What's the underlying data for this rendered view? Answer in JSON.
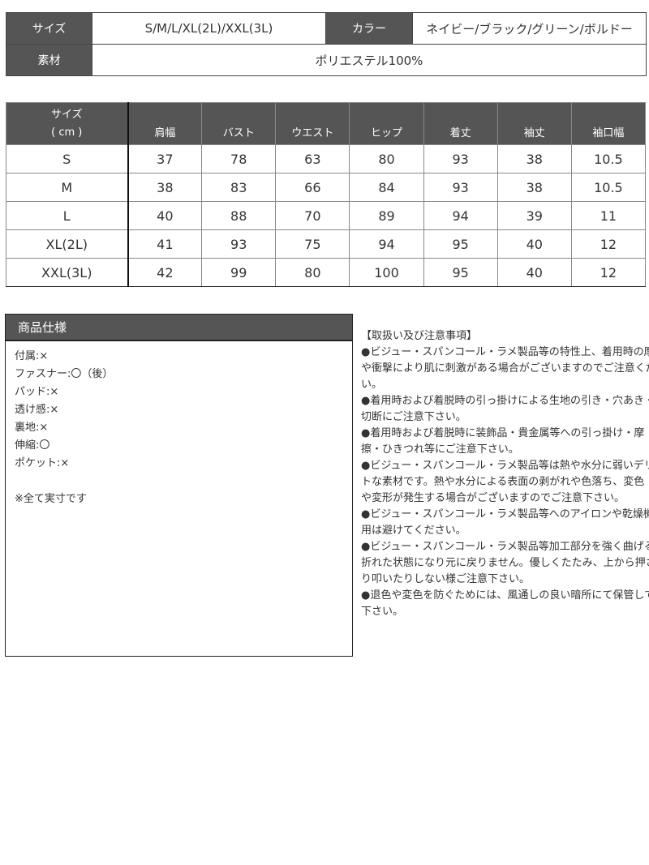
{
  "info": {
    "size_label": "サイズ",
    "size_value": "S/M/L/XL(2L)/XXL(3L)",
    "color_label": "カラー",
    "color_value": "ネイビー/ブラック/グリーン/ボルドー",
    "material_label": "素材",
    "material_value": "ポリエステル100%"
  },
  "size_table": {
    "header_size": "サイズ",
    "header_unit": "( cm )",
    "columns": [
      "肩幅",
      "バスト",
      "ウエスト",
      "ヒップ",
      "着丈",
      "袖丈",
      "袖口幅"
    ],
    "rows": [
      {
        "size": "S",
        "values": [
          "37",
          "78",
          "63",
          "80",
          "93",
          "38",
          "10.5"
        ]
      },
      {
        "size": "M",
        "values": [
          "38",
          "83",
          "66",
          "84",
          "93",
          "38",
          "10.5"
        ]
      },
      {
        "size": "L",
        "values": [
          "40",
          "88",
          "70",
          "89",
          "94",
          "39",
          "11"
        ]
      },
      {
        "size": "XL(2L)",
        "values": [
          "41",
          "93",
          "75",
          "94",
          "95",
          "40",
          "12"
        ]
      },
      {
        "size": "XXL(3L)",
        "values": [
          "42",
          "99",
          "80",
          "100",
          "95",
          "40",
          "12"
        ]
      }
    ]
  },
  "spec": {
    "title": "商品仕様",
    "items": [
      "付属:×",
      "ファスナー:〇（後）",
      "パッド:×",
      "透け感:×",
      "裏地:×",
      "伸縮:〇",
      "ポケット:×"
    ],
    "note": "※全て実寸です"
  },
  "notes": {
    "title": "【取扱い及び注意事項】",
    "lines": [
      "●ビジュー・スパンコール・ラメ製品等の特性上、着用時の摩擦",
      "や衝撃により肌に刺激がある場合がございますのでご注意くださ",
      "い。",
      "●着用時および着脱時の引っ掛けによる生地の引き・穴あき・",
      "切断にご注意下さい。",
      "●着用時および着脱時に装飾品・貴金属等への引っ掛け・摩",
      "擦・ひきつれ等にご注意下さい。",
      "●ビジュー・スパンコール・ラメ製品等は熱や水分に弱いデリケー",
      "トな素材です。熱や水分による表面の剥がれや色落ち、変色",
      "や変形が発生する場合がございますのでご注意下さい。",
      "●ビジュー・スパンコール・ラメ製品等へのアイロンや乾燥機の使",
      "用は避けてください。",
      "●ビジュー・スパンコール・ラメ製品等加工部分を強く曲げると",
      "折れた状態になり元に戻りません。優しくたたみ、上から押さえた",
      "り叩いたりしない様ご注意下さい。",
      "●退色や変色を防ぐためには、風通しの良い暗所にて保管して",
      "下さい。"
    ]
  }
}
